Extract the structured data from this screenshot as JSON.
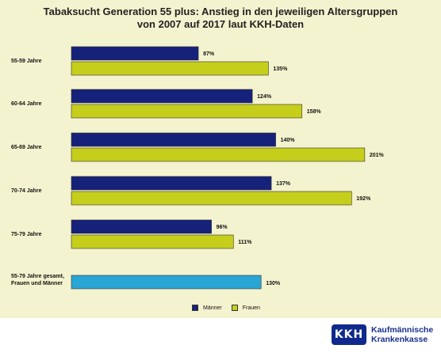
{
  "title": {
    "line1": "Tabaksucht Generation 55 plus: Anstieg in den jeweiligen Altersgruppen",
    "line2": "von 2007 auf 2017 laut KKH-Daten"
  },
  "colors": {
    "maenner": "#16217a",
    "frauen": "#c6ce1c",
    "gesamt": "#29a5d6",
    "background": "#f4f3cf"
  },
  "chart_data": {
    "type": "bar",
    "orientation": "horizontal",
    "categories": [
      "55-59 Jahre",
      "60-64 Jahre",
      "65-69 Jahre",
      "70-74 Jahre",
      "75-79 Jahre"
    ],
    "series": [
      {
        "name": "Männer",
        "values": [
          87,
          124,
          140,
          137,
          96
        ],
        "labels": [
          "87%",
          "124%",
          "140%",
          "137%",
          "96%"
        ]
      },
      {
        "name": "Frauen",
        "values": [
          135,
          158,
          201,
          192,
          111
        ],
        "labels": [
          "135%",
          "158%",
          "201%",
          "192%",
          "111%"
        ]
      }
    ],
    "total": {
      "category_lines": [
        "55-79 Jahre gesamt,",
        "Frauen und Männer"
      ],
      "value": 130,
      "label": "130%"
    },
    "legend": {
      "position": "bottom",
      "items": [
        "Männer",
        "Frauen"
      ]
    }
  },
  "footer": {
    "logo_text": "KKH",
    "company_line1": "Kaufmännische",
    "company_line2": "Krankenkasse"
  }
}
